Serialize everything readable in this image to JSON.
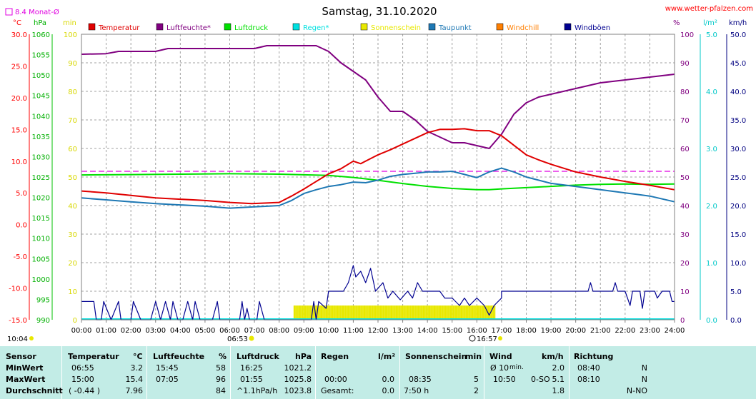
{
  "header": {
    "title": "Samstag, 31.10.2020",
    "website": "www.wetter-pfalzen.com",
    "month_avg_label": "8.4 Monat-Ø"
  },
  "axes": {
    "units_left": [
      "°C",
      "hPa",
      "min"
    ],
    "units_right": [
      "%",
      "l/m²",
      "km/h"
    ],
    "temp_ticks": [
      "30.0",
      "25.0",
      "20.0",
      "15.0",
      "10.0",
      "5.0",
      "0.0",
      "-5.0",
      "-10.0",
      "-15.0"
    ],
    "pressure_ticks": [
      "1060",
      "1055",
      "1050",
      "1045",
      "1040",
      "1035",
      "1030",
      "1025",
      "1020",
      "1015",
      "1010",
      "1005",
      "1000",
      "995",
      "990"
    ],
    "sun_ticks": [
      "100",
      "90",
      "80",
      "70",
      "60",
      "50",
      "40",
      "30",
      "20",
      "10",
      "0"
    ],
    "hum_ticks": [
      "100",
      "90",
      "80",
      "70",
      "60",
      "50",
      "40",
      "30",
      "20",
      "10",
      "0"
    ],
    "rain_ticks": [
      "5.0",
      "4.0",
      "3.0",
      "2.0",
      "1.0",
      "0.0"
    ],
    "wind_ticks": [
      "50.0",
      "45.0",
      "40.0",
      "35.0",
      "30.0",
      "25.0",
      "20.0",
      "15.0",
      "10.0",
      "5.0",
      "0.0"
    ],
    "x_ticks": [
      "00:00",
      "01:00",
      "02:00",
      "03:00",
      "04:00",
      "05:00",
      "06:00",
      "07:00",
      "08:00",
      "09:00",
      "10:00",
      "11:00",
      "12:00",
      "13:00",
      "14:00",
      "15:00",
      "16:00",
      "17:00",
      "18:00",
      "19:00",
      "20:00",
      "21:00",
      "22:00",
      "23:00",
      "24:00"
    ],
    "sunrise": "06:53",
    "sunset": "16:57",
    "daylength": "10:04"
  },
  "legend": [
    {
      "label": "Temperatur",
      "color": "#e00000"
    },
    {
      "label": "Luftfeuchte*",
      "color": "#800080"
    },
    {
      "label": "Luftdruck",
      "color": "#00e000"
    },
    {
      "label": "Regen*",
      "color": "#00e0e0"
    },
    {
      "label": "Sonnenschein",
      "color": "#e8e800"
    },
    {
      "label": "Taupunkt",
      "color": "#1e78b4"
    },
    {
      "label": "Windchill",
      "color": "#ff7f00"
    },
    {
      "label": "Windböen",
      "color": "#000090"
    }
  ],
  "chart_data": {
    "type": "line",
    "title": "Samstag, 31.10.2020",
    "x_unit": "hour",
    "xlim": [
      0,
      24
    ],
    "month_avg_temp": 8.4,
    "temperature": {
      "unit": "°C",
      "ylim": [
        -15,
        30
      ],
      "points": [
        [
          0,
          5.3
        ],
        [
          1,
          5.0
        ],
        [
          2,
          4.6
        ],
        [
          3,
          4.2
        ],
        [
          4,
          4.0
        ],
        [
          5,
          3.8
        ],
        [
          6,
          3.5
        ],
        [
          6.9,
          3.3
        ],
        [
          7.5,
          3.4
        ],
        [
          8,
          3.5
        ],
        [
          8.5,
          4.5
        ],
        [
          9,
          5.6
        ],
        [
          9.5,
          6.8
        ],
        [
          10,
          8.0
        ],
        [
          10.5,
          8.8
        ],
        [
          11,
          10.0
        ],
        [
          11.3,
          9.6
        ],
        [
          12,
          11.0
        ],
        [
          12.5,
          11.8
        ],
        [
          13,
          12.7
        ],
        [
          13.5,
          13.6
        ],
        [
          14,
          14.5
        ],
        [
          14.5,
          15.0
        ],
        [
          15,
          15.0
        ],
        [
          15.5,
          15.1
        ],
        [
          16,
          14.8
        ],
        [
          16.5,
          14.8
        ],
        [
          17,
          14.0
        ],
        [
          17.5,
          12.5
        ],
        [
          18,
          11.0
        ],
        [
          18.5,
          10.2
        ],
        [
          19,
          9.5
        ],
        [
          19.5,
          8.9
        ],
        [
          20,
          8.3
        ],
        [
          21,
          7.5
        ],
        [
          22,
          6.8
        ],
        [
          23,
          6.2
        ],
        [
          24,
          5.5
        ]
      ]
    },
    "dewpoint": {
      "unit": "°C",
      "ylim": [
        -15,
        30
      ],
      "points": [
        [
          0,
          4.2
        ],
        [
          1,
          3.9
        ],
        [
          2,
          3.6
        ],
        [
          3,
          3.3
        ],
        [
          4,
          3.1
        ],
        [
          5,
          2.9
        ],
        [
          6,
          2.6
        ],
        [
          7,
          2.8
        ],
        [
          8,
          3.0
        ],
        [
          8.5,
          3.8
        ],
        [
          9,
          4.9
        ],
        [
          9.5,
          5.5
        ],
        [
          10,
          6.0
        ],
        [
          10.5,
          6.3
        ],
        [
          11,
          6.7
        ],
        [
          11.5,
          6.6
        ],
        [
          12,
          7.0
        ],
        [
          12.5,
          7.6
        ],
        [
          13,
          7.9
        ],
        [
          13.5,
          8.1
        ],
        [
          14,
          8.3
        ],
        [
          14.5,
          8.3
        ],
        [
          15,
          8.4
        ],
        [
          15.5,
          7.9
        ],
        [
          16,
          7.4
        ],
        [
          16.5,
          8.3
        ],
        [
          17,
          8.9
        ],
        [
          17.5,
          8.3
        ],
        [
          18,
          7.5
        ],
        [
          19,
          6.5
        ],
        [
          20,
          6.0
        ],
        [
          21,
          5.5
        ],
        [
          22,
          5.0
        ],
        [
          23,
          4.5
        ],
        [
          24,
          3.6
        ]
      ]
    },
    "humidity": {
      "unit": "%",
      "ylim": [
        0,
        100
      ],
      "points": [
        [
          0,
          93
        ],
        [
          1,
          93.2
        ],
        [
          1.5,
          94
        ],
        [
          3,
          94
        ],
        [
          3.5,
          95
        ],
        [
          7,
          95
        ],
        [
          7.5,
          96
        ],
        [
          9.5,
          96
        ],
        [
          10,
          94
        ],
        [
          10.5,
          90
        ],
        [
          11,
          87
        ],
        [
          11.5,
          84
        ],
        [
          12,
          78
        ],
        [
          12.5,
          73
        ],
        [
          13,
          73
        ],
        [
          13.5,
          70
        ],
        [
          14,
          66
        ],
        [
          14.5,
          64
        ],
        [
          15,
          62
        ],
        [
          15.5,
          62
        ],
        [
          16,
          61
        ],
        [
          16.5,
          60
        ],
        [
          17,
          65
        ],
        [
          17.5,
          72
        ],
        [
          18,
          76
        ],
        [
          18.5,
          78
        ],
        [
          19,
          79
        ],
        [
          20,
          81
        ],
        [
          21,
          83
        ],
        [
          22,
          84
        ],
        [
          23,
          85
        ],
        [
          24,
          86
        ]
      ]
    },
    "pressure": {
      "unit": "hPa",
      "ylim": [
        990,
        1060
      ],
      "points": [
        [
          0,
          1025.5
        ],
        [
          2,
          1025.6
        ],
        [
          4,
          1025.7
        ],
        [
          6,
          1025.8
        ],
        [
          8,
          1025.7
        ],
        [
          10,
          1025.4
        ],
        [
          11,
          1024.9
        ],
        [
          12,
          1024.2
        ],
        [
          13,
          1023.4
        ],
        [
          14,
          1022.7
        ],
        [
          15,
          1022.2
        ],
        [
          16,
          1021.9
        ],
        [
          16.5,
          1021.9
        ],
        [
          17,
          1022.1
        ],
        [
          18,
          1022.4
        ],
        [
          19,
          1022.7
        ],
        [
          20,
          1023.0
        ],
        [
          21,
          1023.2
        ],
        [
          22,
          1023.3
        ],
        [
          23,
          1023.2
        ],
        [
          24,
          1023.3
        ]
      ]
    },
    "sunshine": {
      "unit": "min",
      "ylim": [
        0,
        100
      ],
      "start": 8.6,
      "end": 16.75,
      "value": 5
    },
    "gusts": {
      "unit": "km/h",
      "ylim": [
        0,
        50
      ],
      "points": [
        [
          0,
          3.2
        ],
        [
          0.5,
          3.2
        ],
        [
          0.6,
          0
        ],
        [
          0.8,
          0
        ],
        [
          0.9,
          3.2
        ],
        [
          1.2,
          0
        ],
        [
          1.5,
          3.2
        ],
        [
          1.6,
          0
        ],
        [
          2,
          0
        ],
        [
          2.1,
          3.2
        ],
        [
          2.4,
          0
        ],
        [
          2.8,
          0
        ],
        [
          3,
          3.2
        ],
        [
          3.2,
          0
        ],
        [
          3.4,
          3.2
        ],
        [
          3.6,
          0
        ],
        [
          3.7,
          3.2
        ],
        [
          3.9,
          0
        ],
        [
          4.1,
          0
        ],
        [
          4.3,
          3.2
        ],
        [
          4.5,
          0
        ],
        [
          4.6,
          3.2
        ],
        [
          4.8,
          0
        ],
        [
          5.3,
          0
        ],
        [
          5.5,
          3.2
        ],
        [
          5.6,
          0
        ],
        [
          6.4,
          0
        ],
        [
          6.5,
          3.2
        ],
        [
          6.6,
          0
        ],
        [
          6.7,
          2.0
        ],
        [
          6.8,
          0
        ],
        [
          7.1,
          0
        ],
        [
          7.2,
          3.2
        ],
        [
          7.4,
          0
        ],
        [
          9.3,
          0
        ],
        [
          9.4,
          3.2
        ],
        [
          9.5,
          0
        ],
        [
          9.6,
          3.2
        ],
        [
          9.9,
          2.0
        ],
        [
          10,
          5.0
        ],
        [
          10.6,
          5.0
        ],
        [
          10.8,
          6.5
        ],
        [
          11,
          9.5
        ],
        [
          11.1,
          7.5
        ],
        [
          11.3,
          8.5
        ],
        [
          11.5,
          6.5
        ],
        [
          11.7,
          9.0
        ],
        [
          11.9,
          5.0
        ],
        [
          12.2,
          6.5
        ],
        [
          12.4,
          3.8
        ],
        [
          12.6,
          5.0
        ],
        [
          12.9,
          3.5
        ],
        [
          13.2,
          5.0
        ],
        [
          13.4,
          3.8
        ],
        [
          13.6,
          6.5
        ],
        [
          13.8,
          5.0
        ],
        [
          14.5,
          5.0
        ],
        [
          14.7,
          3.8
        ],
        [
          15,
          3.8
        ],
        [
          15.3,
          2.5
        ],
        [
          15.5,
          3.8
        ],
        [
          15.7,
          2.5
        ],
        [
          16,
          3.8
        ],
        [
          16.3,
          2.5
        ],
        [
          16.5,
          0.8
        ],
        [
          16.7,
          2.5
        ],
        [
          17,
          3.8
        ],
        [
          17,
          5.0
        ],
        [
          20.5,
          5.0
        ],
        [
          20.6,
          6.5
        ],
        [
          20.7,
          5.0
        ],
        [
          21.5,
          5.0
        ],
        [
          21.6,
          6.5
        ],
        [
          21.7,
          5.0
        ],
        [
          22,
          5.0
        ],
        [
          22.2,
          2.5
        ],
        [
          22.3,
          5.0
        ],
        [
          22.6,
          5.0
        ],
        [
          22.7,
          2.0
        ],
        [
          22.8,
          5.0
        ],
        [
          23.2,
          5.0
        ],
        [
          23.3,
          3.8
        ],
        [
          23.5,
          5.0
        ],
        [
          23.8,
          5.0
        ],
        [
          23.9,
          3.2
        ],
        [
          24,
          3.2
        ]
      ]
    },
    "rain": {
      "unit": "l/m²",
      "ylim": [
        0,
        5
      ],
      "total": 0.0
    }
  },
  "stats": {
    "headers": {
      "sensor": "Sensor",
      "temp": "Temperatur",
      "temp_unit": "°C",
      "hum": "Luftfeuchte",
      "hum_unit": "%",
      "press": "Luftdruck",
      "press_unit": "hPa",
      "rain": "Regen",
      "rain_unit": "l/m²",
      "sun": "Sonnenschein",
      "sun_unit": "min",
      "wind": "Wind",
      "wind_unit": "km/h",
      "dir": "Richtung"
    },
    "min": {
      "label": "MinWert",
      "temp_time": "06:55",
      "temp": "3.2",
      "hum_time": "15:45",
      "hum": "58",
      "press_time": "16:25",
      "press": "1021.2",
      "rain_time": "",
      "rain": "",
      "sun_time": "",
      "sun": "",
      "wind_label": "Ø 10",
      "wind_label2": "min.",
      "wind": "2.0",
      "dir_time": "08:40",
      "dir": "N"
    },
    "max": {
      "label": "MaxWert",
      "temp_time": "15:00",
      "temp": "15.4",
      "hum_time": "07:05",
      "hum": "96",
      "press_time": "01:55",
      "press": "1025.8",
      "rain_time": "00:00",
      "rain": "0.0",
      "sun_time": "08:35",
      "sun": "5",
      "wind_time": "10:50",
      "wind_dir": "0-SO",
      "wind": "5.1",
      "dir_time": "08:10",
      "dir": "N"
    },
    "avg": {
      "label": "Durchschnitt",
      "temp_dev": "( -0.44 )",
      "temp": "7.96",
      "hum": "84",
      "press_trend": "^1.1hPa/h",
      "press": "1023.8",
      "rain_label": "Gesamt:",
      "rain": "0.0",
      "sun_time": "7:50 h",
      "sun": "2",
      "wind": "1.8",
      "dir": "N-NO"
    }
  }
}
